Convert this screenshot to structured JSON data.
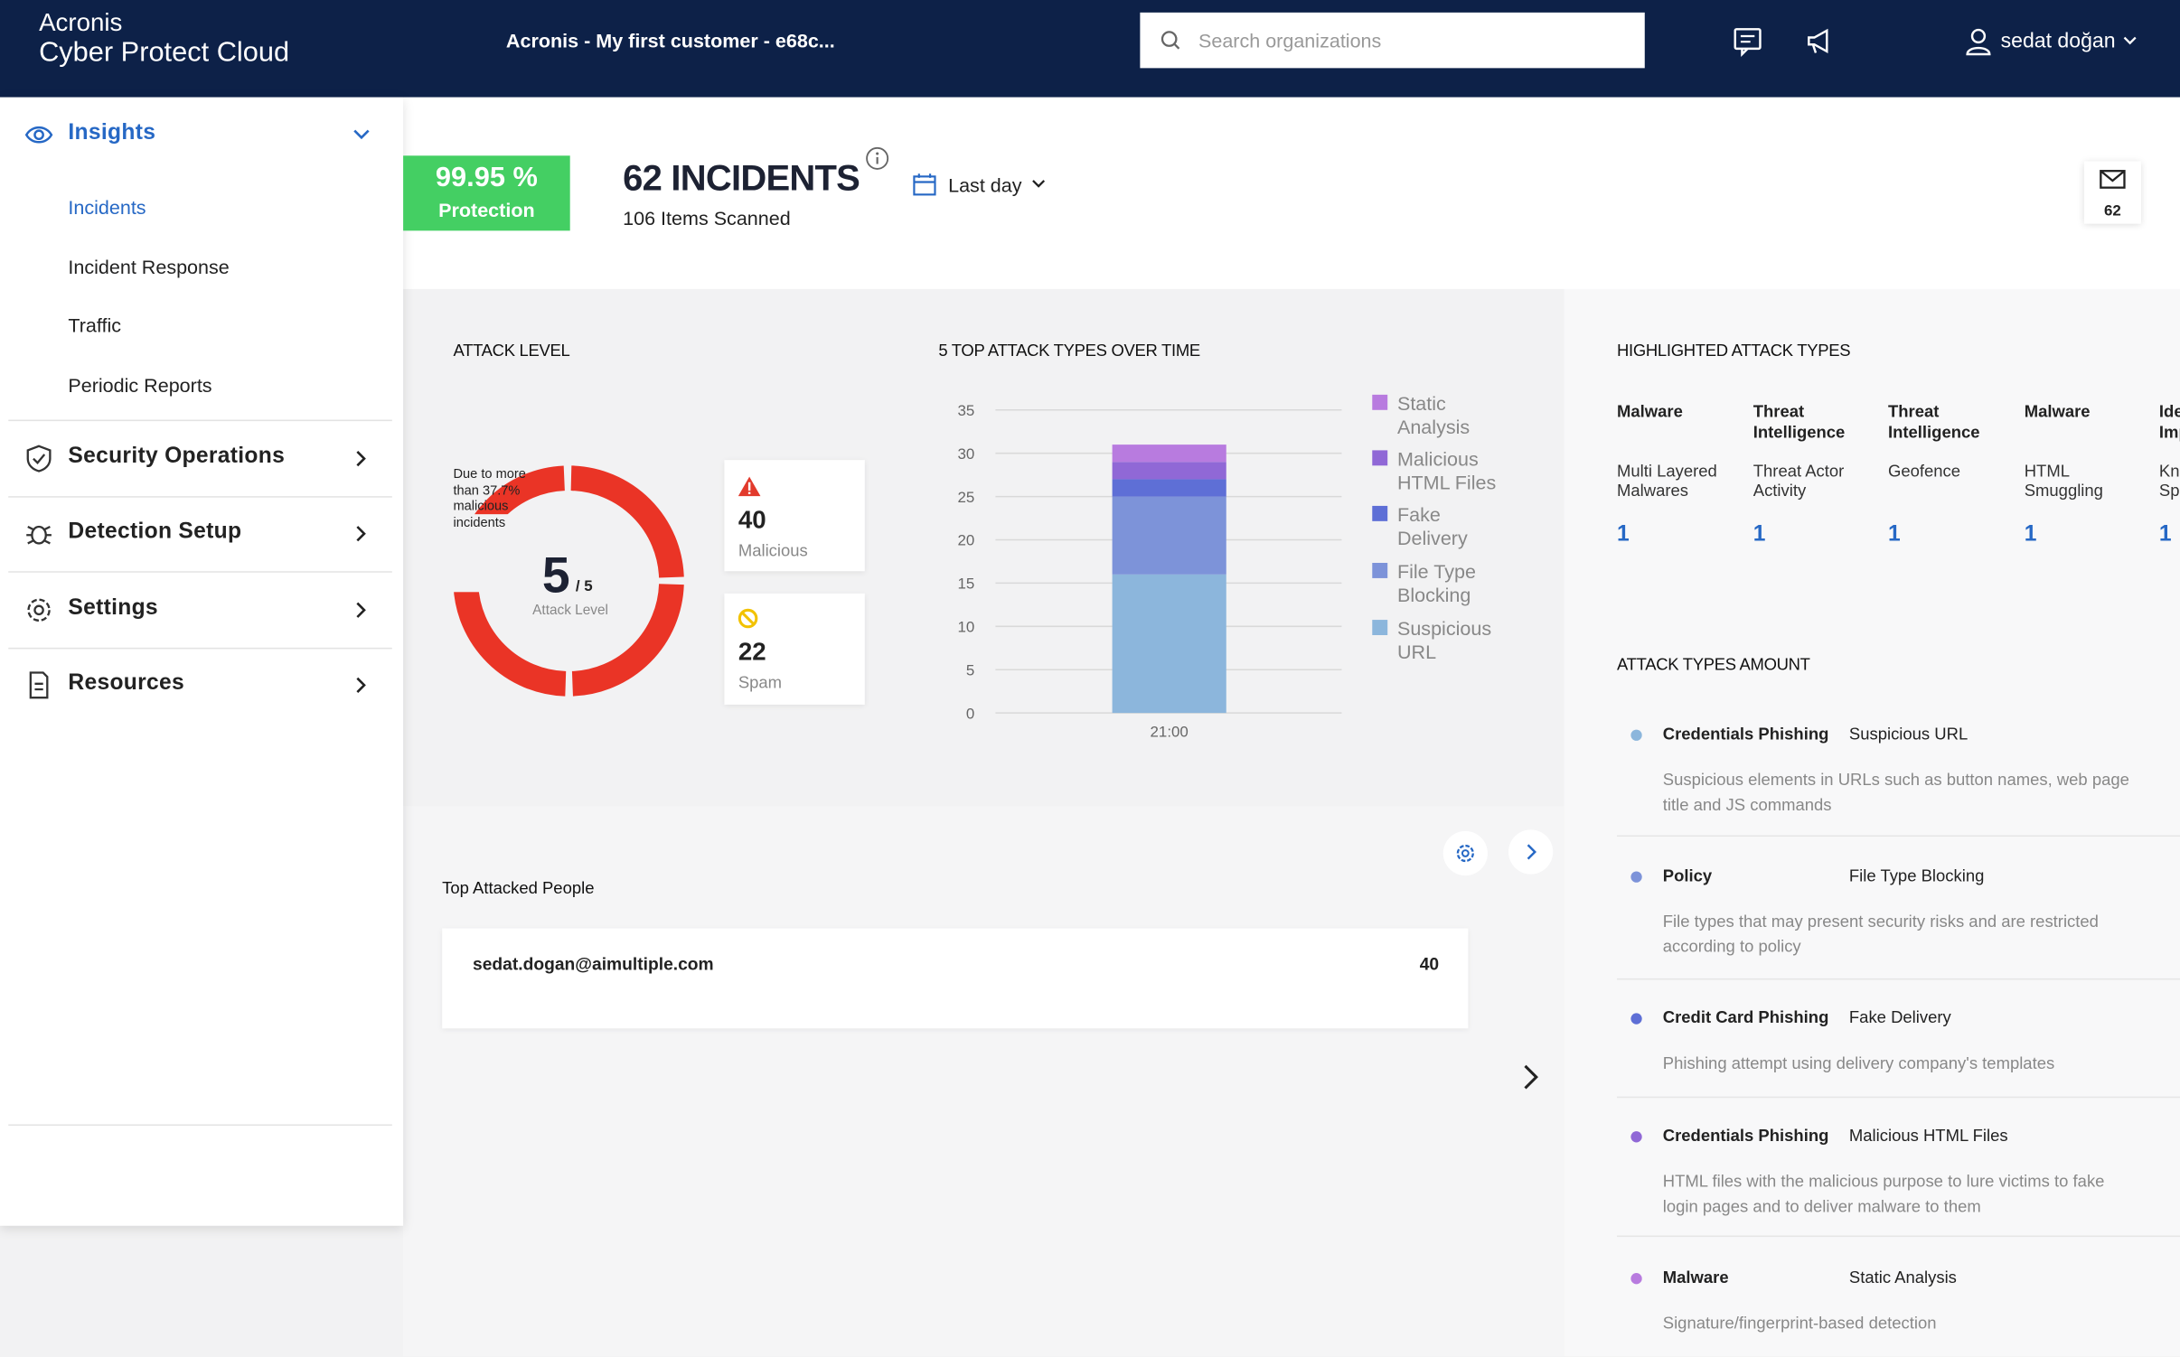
{
  "header": {
    "brand": "Acronis",
    "product": "Cyber Protect Cloud",
    "customer": "Acronis - My first customer - e68c...",
    "search_placeholder": "Search organizations",
    "user": "sedat doğan"
  },
  "sidebar": {
    "sections": [
      {
        "label": "Insights",
        "items": [
          "Incidents",
          "Incident Response",
          "Traffic",
          "Periodic Reports"
        ]
      },
      {
        "label": "Security Operations"
      },
      {
        "label": "Detection Setup"
      },
      {
        "label": "Settings"
      },
      {
        "label": "Resources"
      }
    ]
  },
  "summary": {
    "protection_value": "99.95 %",
    "protection_label": "Protection",
    "incidents": "62 INCIDENTS",
    "scanned": "106 Items Scanned",
    "period": "Last day",
    "mail_count": "62"
  },
  "attack_level": {
    "title": "ATTACK LEVEL",
    "note": "Due to more than 37.7% malicious incidents",
    "level": "5",
    "max": "/ 5",
    "label": "Attack Level",
    "malicious_count": "40",
    "malicious_label": "Malicious",
    "spam_count": "22",
    "spam_label": "Spam"
  },
  "chart_data": {
    "type": "bar",
    "stacked": true,
    "title": "5 TOP ATTACK TYPES OVER TIME",
    "categories": [
      "21:00"
    ],
    "series": [
      {
        "name": "Static Analysis",
        "color": "#b87bdf",
        "values": [
          2
        ]
      },
      {
        "name": "Malicious HTML Files",
        "color": "#9068d6",
        "values": [
          2
        ]
      },
      {
        "name": "Fake Delivery",
        "color": "#5e6fd6",
        "values": [
          2
        ]
      },
      {
        "name": "File Type Blocking",
        "color": "#7d93d9",
        "values": [
          9
        ]
      },
      {
        "name": "Suspicious URL",
        "color": "#8cb6dc",
        "values": [
          16
        ]
      }
    ],
    "ylim": [
      0,
      35
    ],
    "yticks": [
      0,
      5,
      10,
      15,
      20,
      25,
      30,
      35
    ],
    "grid": true
  },
  "highlighted": {
    "title": "HIGHLIGHTED ATTACK TYPES",
    "items": [
      {
        "category": "Malware",
        "name": "Multi Layered Malwares",
        "count": "1"
      },
      {
        "category": "Threat Intelligence",
        "name": "Threat Actor Activity",
        "count": "1"
      },
      {
        "category": "Threat Intelligence",
        "name": "Geofence",
        "count": "1"
      },
      {
        "category": "Malware",
        "name": "HTML Smuggling",
        "count": "1"
      },
      {
        "category": "Identity Impersonation",
        "name": "Known Spammer",
        "count": "1"
      }
    ]
  },
  "amounts": {
    "title": "ATTACK TYPES AMOUNT",
    "items": [
      {
        "category": "Credentials Phishing",
        "type": "Suspicious URL",
        "description": "Suspicious elements in URLs such as button names, web page title and JS commands",
        "color": "#8cb6dc"
      },
      {
        "category": "Policy",
        "type": "File Type Blocking",
        "description": "File types that may present security risks and are restricted according to policy",
        "color": "#7d93d9"
      },
      {
        "category": "Credit Card Phishing",
        "type": "Fake Delivery",
        "description": "Phishing attempt using delivery company's templates",
        "color": "#5e6fd6"
      },
      {
        "category": "Credentials Phishing",
        "type": "Malicious HTML Files",
        "description": "HTML files with the malicious purpose to lure victims to fake login pages and to deliver malware to them",
        "color": "#9068d6"
      },
      {
        "category": "Malware",
        "type": "Static Analysis",
        "description": "Signature/fingerprint-based detection",
        "color": "#b87bdf"
      }
    ]
  },
  "top_people": {
    "title": "Top Attacked People",
    "rows": [
      {
        "email": "sedat.dogan@aimultiple.com",
        "count": "40"
      }
    ]
  }
}
